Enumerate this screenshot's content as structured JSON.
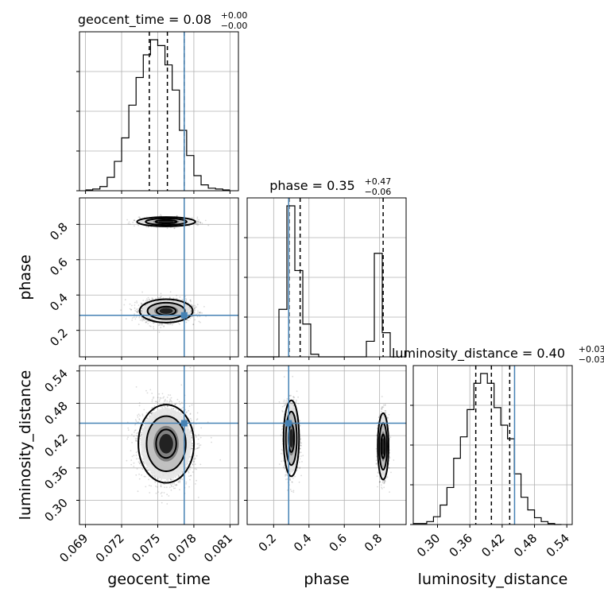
{
  "chart_data": {
    "type": "corner",
    "truth_color": "#4682b4",
    "parameters": [
      {
        "name": "geocent_time",
        "label": "geocent_time",
        "range": [
          0.0685,
          0.0817
        ],
        "ticks": [
          "0.069",
          "0.072",
          "0.075",
          "0.078",
          "0.081"
        ],
        "truth": 0.0772
      },
      {
        "name": "phase",
        "label": "phase",
        "range": [
          0.05,
          0.95
        ],
        "ticks": [
          "0.2",
          "0.4",
          "0.6",
          "0.8"
        ],
        "truth": 0.285
      },
      {
        "name": "luminosity_distance",
        "label": "luminosity_distance",
        "range": [
          0.255,
          0.55
        ],
        "ticks": [
          "0.30",
          "0.36",
          "0.42",
          "0.48",
          "0.54"
        ],
        "truth": 0.443
      }
    ],
    "marginals": [
      {
        "param": "geocent_time",
        "title": {
          "prefix": "geocent_time = 0.08",
          "plus": "+0.00",
          "minus": "−0.00"
        },
        "quantiles": [
          0.0743,
          0.0758,
          0.0772
        ],
        "bins": [
          0.069,
          0.0696,
          0.0702,
          0.0708,
          0.0714,
          0.072,
          0.0726,
          0.0732,
          0.0738,
          0.0744,
          0.075,
          0.0756,
          0.0762,
          0.0768,
          0.0774,
          0.078,
          0.0786,
          0.0792,
          0.0798,
          0.0804,
          0.081
        ],
        "counts": [
          1,
          2,
          5,
          16,
          35,
          63,
          102,
          135,
          162,
          180,
          173,
          150,
          120,
          72,
          42,
          18,
          7,
          3,
          2,
          1
        ]
      },
      {
        "param": "phase",
        "title": {
          "prefix": "phase = 0.35",
          "plus": "+0.47",
          "minus": "−0.06"
        },
        "quantiles": [
          0.287,
          0.35,
          0.82
        ],
        "bins": [
          0.05,
          0.095,
          0.14,
          0.185,
          0.23,
          0.275,
          0.32,
          0.365,
          0.41,
          0.455,
          0.5,
          0.545,
          0.59,
          0.635,
          0.68,
          0.725,
          0.77,
          0.815,
          0.86,
          0.905
        ],
        "counts": [
          0,
          0,
          0,
          0,
          55,
          175,
          100,
          38,
          3,
          0,
          0,
          0,
          0,
          0,
          0,
          18,
          120,
          28,
          0
        ]
      },
      {
        "param": "luminosity_distance",
        "title": {
          "prefix": "luminosity_distance = 0.40",
          "plus": "+0.03",
          "minus": "−0.03"
        },
        "quantiles": [
          0.371,
          0.4,
          0.434
        ],
        "bins": [
          0.255,
          0.2675,
          0.28,
          0.2925,
          0.305,
          0.3175,
          0.33,
          0.3425,
          0.355,
          0.3675,
          0.38,
          0.3925,
          0.405,
          0.4175,
          0.43,
          0.4425,
          0.455,
          0.4675,
          0.48,
          0.4925,
          0.505,
          0.5175,
          0.53
        ],
        "counts": [
          1,
          1,
          3,
          8,
          20,
          38,
          68,
          90,
          118,
          145,
          155,
          145,
          120,
          102,
          88,
          52,
          28,
          15,
          7,
          3,
          1,
          0
        ]
      }
    ],
    "joint": [
      {
        "x": "geocent_time",
        "y": "phase",
        "blobs": [
          {
            "cx": 0.0757,
            "cy": 0.31,
            "sx": 0.001,
            "sy": 0.03,
            "n": 2300
          },
          {
            "cx": 0.0757,
            "cy": 0.815,
            "sx": 0.0011,
            "sy": 0.012,
            "n": 900
          }
        ]
      },
      {
        "x": "geocent_time",
        "y": "luminosity_distance",
        "blobs": [
          {
            "cx": 0.0757,
            "cy": 0.405,
            "sx": 0.00105,
            "sy": 0.033,
            "n": 3000
          }
        ]
      },
      {
        "x": "phase",
        "y": "luminosity_distance",
        "blobs": [
          {
            "cx": 0.3,
            "cy": 0.415,
            "sx": 0.02,
            "sy": 0.032,
            "n": 1800
          },
          {
            "cx": 0.82,
            "cy": 0.4,
            "sx": 0.014,
            "sy": 0.028,
            "n": 1000
          }
        ]
      }
    ]
  }
}
